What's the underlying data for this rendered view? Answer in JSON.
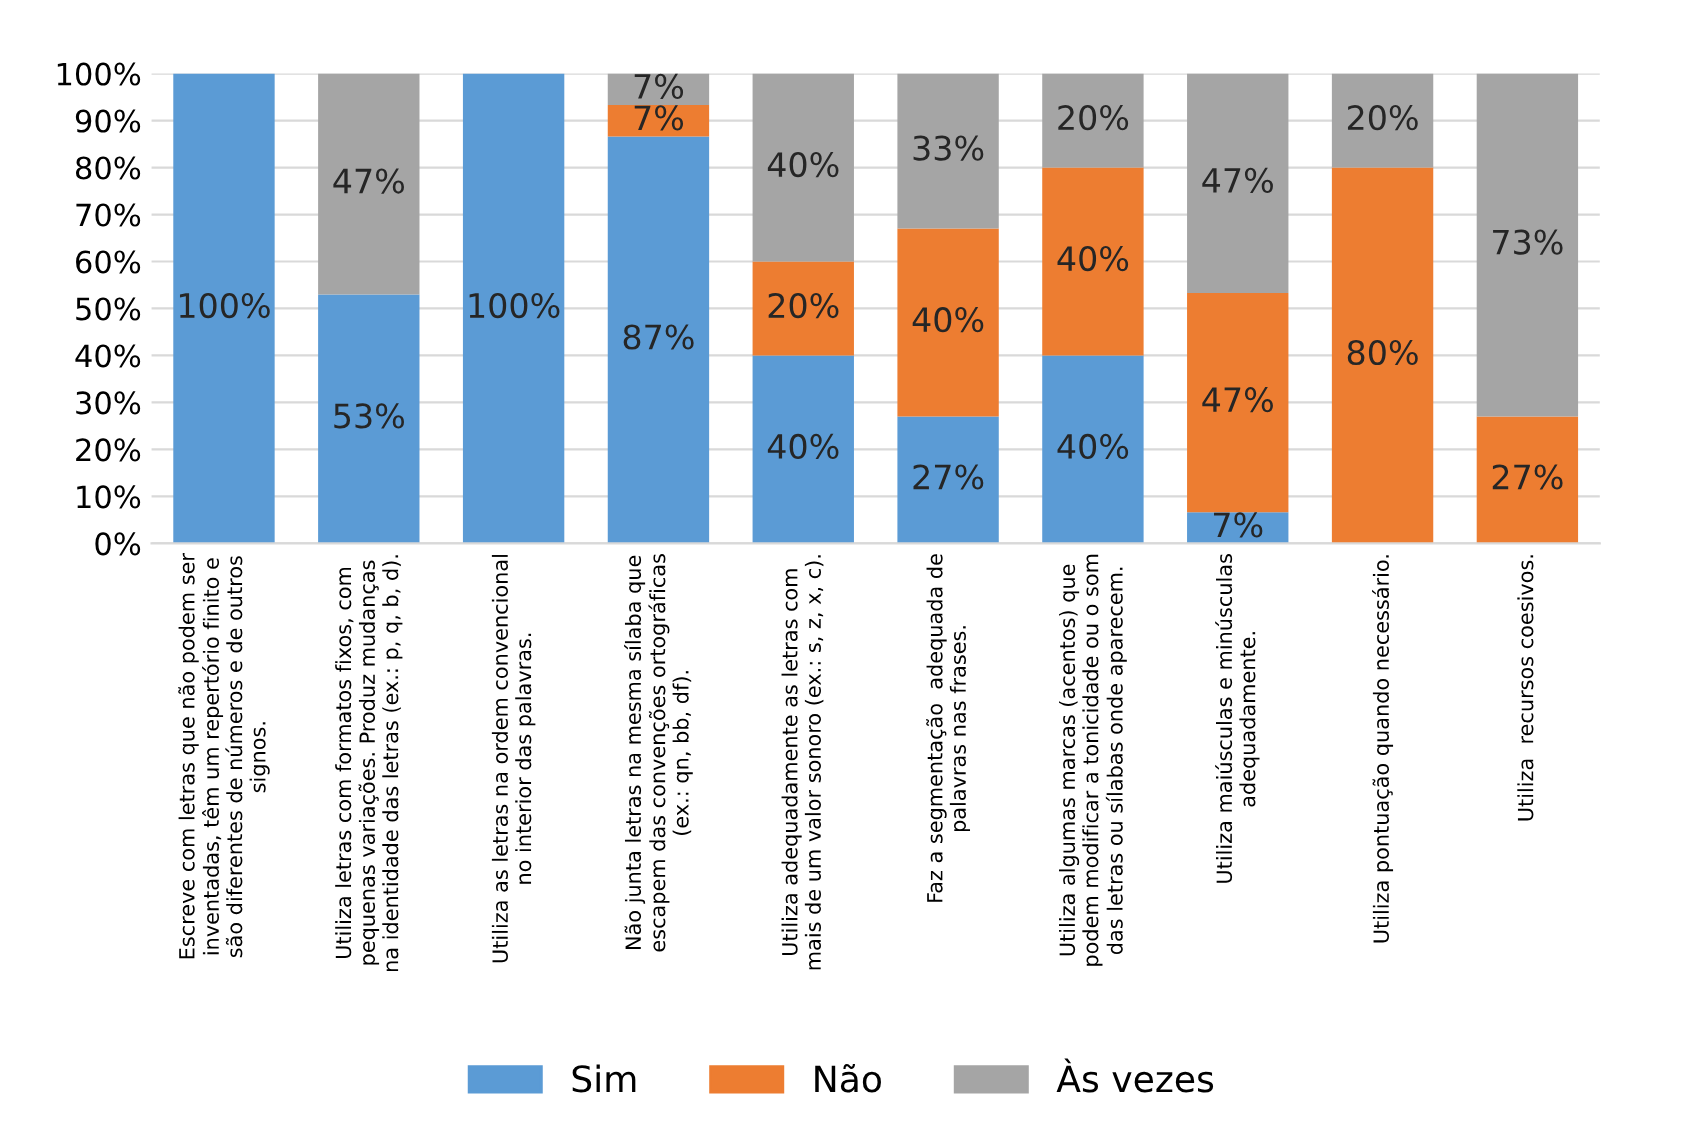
{
  "chart_data": {
    "type": "bar",
    "stacked": true,
    "categories": [
      "Escreve com letras que não podem ser\ninventadas, têm um repertório finito e\nsão diferentes de números e de outros\nsignos.",
      "Utiliza letras com formatos fixos, com\npequenas variações. Produz mudanças\nna identidade das letras (ex.: p, q, b, d).",
      "Utiliza as letras na ordem convencional\nno interior das palavras.",
      "Não junta letras na mesma sílaba que\nescapem das convenções ortográficas\n(ex.: qn, bb, df).",
      "Utiliza adequadamente as letras com\nmais de um valor sonoro (ex.: s, z, x, c).",
      "Faz a segmentação  adequada de\npalavras nas frases.",
      "Utiliza algumas marcas (acentos) que\npodem modificar a tonicidade ou o som\ndas letras ou sílabas onde aparecem.",
      "Utiliza maiúsculas e minúsculas\nadequadamente.",
      "Utiliza pontuação quando necessário.",
      "Utiliza  recursos coesivos."
    ],
    "series": [
      {
        "name": "Sim",
        "color": "#5b9bd5",
        "values": [
          100,
          53,
          100,
          86.6,
          40,
          27,
          40,
          6.6,
          0,
          0
        ],
        "value_labels": [
          "100%",
          "53%",
          "100%",
          "87%",
          "40%",
          "27%",
          "40%",
          "7%",
          null,
          null
        ]
      },
      {
        "name": "Não",
        "color": "#ed7d31",
        "values": [
          0,
          0,
          0,
          6.7,
          20,
          40,
          40,
          46.7,
          80,
          27
        ],
        "value_labels": [
          null,
          null,
          null,
          "7%",
          "20%",
          "40%",
          "40%",
          "47%",
          "80%",
          "27%"
        ]
      },
      {
        "name": "Às vezes",
        "color": "#a5a5a5",
        "values": [
          0,
          47,
          0,
          6.7,
          40,
          33,
          20,
          46.7,
          20,
          73
        ],
        "value_labels": [
          null,
          "47%",
          null,
          "7%",
          "40%",
          "33%",
          "20%",
          "47%",
          "20%",
          "73%"
        ]
      }
    ],
    "ylim": [
      0,
      100
    ],
    "yticks": [
      {
        "value": 0,
        "label": "0%"
      },
      {
        "value": 10,
        "label": "10%"
      },
      {
        "value": 20,
        "label": "20%"
      },
      {
        "value": 30,
        "label": "30%"
      },
      {
        "value": 40,
        "label": "40%"
      },
      {
        "value": 50,
        "label": "50%"
      },
      {
        "value": 60,
        "label": "60%"
      },
      {
        "value": 70,
        "label": "70%"
      },
      {
        "value": 80,
        "label": "80%"
      },
      {
        "value": 90,
        "label": "90%"
      },
      {
        "value": 100,
        "label": "100%"
      }
    ],
    "grid": "y",
    "legend": "bottom"
  }
}
